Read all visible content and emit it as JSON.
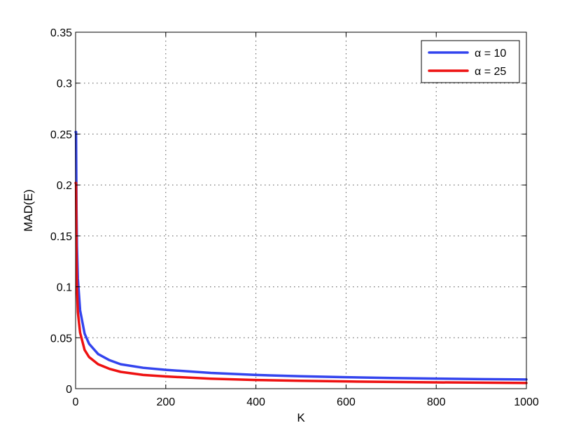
{
  "chart_data": {
    "type": "line",
    "title": "",
    "xlabel": "K",
    "ylabel": "MAD(E)",
    "xlim": [
      0,
      1000
    ],
    "ylim": [
      0,
      0.35
    ],
    "xticks": [
      0,
      200,
      400,
      600,
      800,
      1000
    ],
    "xtick_labels": [
      "0",
      "200",
      "400",
      "600",
      "800",
      "1000"
    ],
    "yticks": [
      0,
      0.05,
      0.1,
      0.15,
      0.2,
      0.25,
      0.3,
      0.35
    ],
    "ytick_labels": [
      "0",
      "0.05",
      "0.1",
      "0.15",
      "0.2",
      "0.25",
      "0.3",
      "0.35"
    ],
    "grid": true,
    "legend_position": "top-right",
    "series": [
      {
        "name": "α = 10",
        "color": "#3344ee",
        "x": [
          1,
          2,
          3,
          5,
          10,
          20,
          30,
          50,
          75,
          100,
          150,
          200,
          300,
          400,
          500,
          600,
          700,
          800,
          900,
          1000
        ],
        "y": [
          0.252,
          0.175,
          0.14,
          0.108,
          0.077,
          0.054,
          0.044,
          0.034,
          0.028,
          0.024,
          0.0205,
          0.0185,
          0.0155,
          0.0135,
          0.0122,
          0.0113,
          0.0105,
          0.0099,
          0.0094,
          0.009
        ]
      },
      {
        "name": "α = 25",
        "color": "#ee1111",
        "x": [
          1,
          2,
          3,
          5,
          10,
          20,
          30,
          50,
          75,
          100,
          150,
          200,
          300,
          400,
          500,
          600,
          700,
          800,
          900,
          1000
        ],
        "y": [
          0.202,
          0.13,
          0.1,
          0.075,
          0.055,
          0.038,
          0.031,
          0.024,
          0.0195,
          0.0165,
          0.0135,
          0.012,
          0.0098,
          0.0085,
          0.0077,
          0.0071,
          0.0066,
          0.0062,
          0.0059,
          0.0056
        ]
      }
    ]
  }
}
